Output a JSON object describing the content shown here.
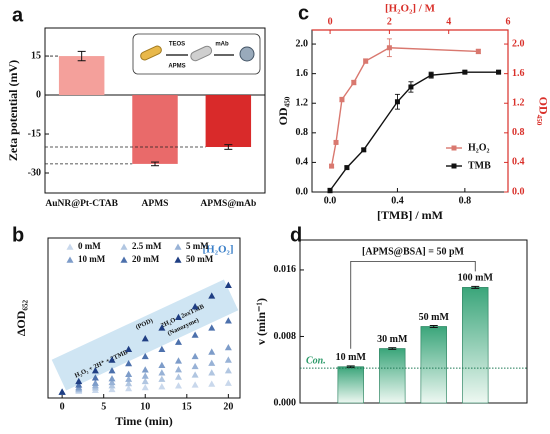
{
  "chart_data": [
    {
      "type": "bar",
      "panel_label": "a",
      "ylabel": "Zeta potential (mV)",
      "categories": [
        "AuNR@Pt-CTAB",
        "APMS",
        "APMS@mAb"
      ],
      "values": [
        15,
        -26.5,
        -20
      ],
      "errors": [
        1.8,
        0.7,
        0.9
      ],
      "colors": [
        "#f4a09b",
        "#e96a6a",
        "#d92a2a"
      ],
      "ylim": [
        -37.7,
        25.8
      ],
      "yticks": [
        15,
        0,
        -15,
        -30
      ],
      "inset_labels": [
        "TEOS",
        "APMS",
        "mAb"
      ]
    },
    {
      "type": "scatter",
      "panel_label": "b",
      "xlabel": "Time (min)",
      "ylabel": "ΔOD₆₅₂",
      "legend_title": "[H₂O₂]",
      "x": [
        0,
        2,
        4,
        6,
        8,
        10,
        12,
        14,
        16,
        18,
        20
      ],
      "xlim": [
        -1.7,
        21.4
      ],
      "xticks": [
        0,
        5,
        10,
        15,
        20
      ],
      "ylim": [
        -0.034,
        0.865
      ],
      "series": [
        {
          "name": "0 mM",
          "color": "#c9d8ec",
          "values": [
            0,
            0.005,
            0.01,
            0.015,
            0.02,
            0.025,
            0.03,
            0.035,
            0.04,
            0.045,
            0.05
          ]
        },
        {
          "name": "2.5 mM",
          "color": "#b1c6e1",
          "values": [
            0,
            0.012,
            0.024,
            0.036,
            0.048,
            0.06,
            0.072,
            0.084,
            0.096,
            0.108,
            0.12
          ]
        },
        {
          "name": "5 mM",
          "color": "#98b2d6",
          "values": [
            0,
            0.018,
            0.036,
            0.054,
            0.072,
            0.09,
            0.108,
            0.126,
            0.144,
            0.162,
            0.18
          ]
        },
        {
          "name": "10 mM",
          "color": "#7d9cc9",
          "values": [
            0,
            0.025,
            0.05,
            0.075,
            0.1,
            0.125,
            0.15,
            0.175,
            0.2,
            0.225,
            0.25
          ]
        },
        {
          "name": "20 mM",
          "color": "#4c70ac",
          "values": [
            0,
            0.04,
            0.08,
            0.12,
            0.16,
            0.2,
            0.24,
            0.28,
            0.32,
            0.36,
            0.4
          ]
        },
        {
          "name": "50 mM",
          "color": "#1f3e83",
          "values": [
            0,
            0.06,
            0.12,
            0.18,
            0.24,
            0.3,
            0.36,
            0.42,
            0.48,
            0.54,
            0.6
          ]
        }
      ],
      "annotations": [
        "H₂O₂ + 2H⁺ + 2TMB",
        "(POD)",
        "2H₂O + 2oxTMB",
        "(Nanozyme)"
      ]
    },
    {
      "type": "line",
      "panel_label": "c",
      "xlabel": "[TMB] / mM",
      "x2label": "[H₂O₂] / M",
      "ylabel": "OD₄₅₀",
      "y2label": "OD₄₅₀",
      "xlim": [
        -0.107,
        1.056
      ],
      "xticks": [
        {
          "value": 0,
          "label": "0.0"
        },
        0.4,
        0.8
      ],
      "x2lim": [
        -0.61,
        6
      ],
      "x2ticks": [
        0,
        2,
        4,
        6
      ],
      "x2color": "#d9302a",
      "ylim": [
        0,
        2.19
      ],
      "yticks": [
        {
          "value": 0,
          "label": "0.0"
        },
        0.4,
        0.8,
        1.2,
        1.6,
        {
          "value": 2,
          "label": "2.0"
        }
      ],
      "y2ticks": [
        {
          "value": 0,
          "label": "0.0"
        },
        0.4,
        0.8,
        1.2,
        1.6,
        {
          "value": 2,
          "label": "2.0"
        }
      ],
      "y2color": "#d9302a",
      "legend": "right",
      "series": [
        {
          "name": "H₂O₂",
          "color": "#d9786f",
          "axis": "x2",
          "x": [
            0.05,
            0.2,
            0.4,
            0.8,
            1.2,
            2,
            5
          ],
          "values": [
            0.35,
            0.67,
            1.25,
            1.48,
            1.77,
            1.95,
            1.9
          ],
          "errors": [
            0.02,
            0.02,
            0.03,
            0.03,
            0.03,
            0.12,
            0.03
          ]
        },
        {
          "name": "TMB",
          "color": "#111111",
          "x": [
            0,
            0.1,
            0.2,
            0.4,
            0.48,
            0.6,
            0.8,
            1.0
          ],
          "values": [
            0.02,
            0.33,
            0.57,
            1.22,
            1.42,
            1.58,
            1.62,
            1.62
          ],
          "errors": [
            0.03,
            0.02,
            0.02,
            0.1,
            0.07,
            0.04,
            0.02,
            0.02
          ]
        }
      ]
    },
    {
      "type": "bar",
      "panel_label": "d",
      "ylabel": "v (min⁻¹)",
      "categories": [
        "10 mM",
        "30 mM",
        "50 mM",
        "100 mM"
      ],
      "category_label_position": "top",
      "values": [
        0.00436,
        0.00655,
        0.0092,
        0.0139
      ],
      "errors": [
        0.0001,
        0.0001,
        0.00012,
        0.00012
      ],
      "color": "#3aa57a",
      "ylim": [
        0,
        0.0196
      ],
      "yticks": [
        {
          "value": 0,
          "label": "0.000"
        },
        {
          "value": 0.008,
          "label": "0.008"
        },
        {
          "value": 0.016,
          "label": "0.016"
        }
      ],
      "control": {
        "label": "Con.",
        "value": 0.0042
      },
      "bracket_label": "[APMS@BSA] = 50 pM"
    }
  ]
}
